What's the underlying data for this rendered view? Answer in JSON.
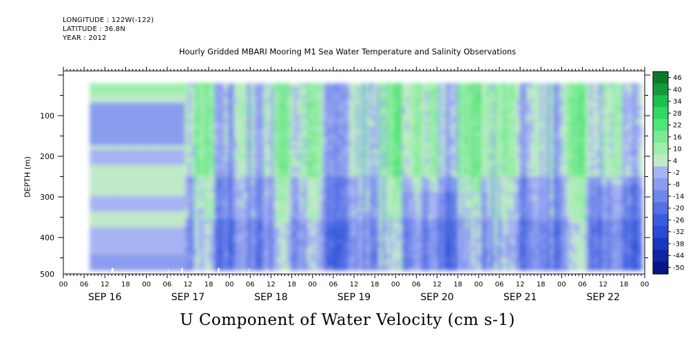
{
  "header": {
    "longitude": "LONGITUDE : 122W(-122)",
    "latitude": "LATITUDE : 36.8N",
    "year": "YEAR : 2012",
    "title": "Hourly Gridded MBARI Mooring M1 Sea Water Temperature and Salinity Observations"
  },
  "chart_data": {
    "type": "heatmap",
    "title": "Hourly Gridded MBARI Mooring M1 Sea Water Temperature and Salinity Observations",
    "xlabel": "U Component of Water Velocity (cm s-1)",
    "ylabel": "DEPTH (m)",
    "x_hour_ticks": [
      "00",
      "06",
      "12",
      "18",
      "00",
      "06",
      "12",
      "18",
      "00",
      "06",
      "12",
      "18",
      "00",
      "06",
      "12",
      "18",
      "00",
      "06",
      "12",
      "18",
      "00",
      "06",
      "12",
      "18",
      "00",
      "06",
      "12",
      "18",
      "00"
    ],
    "x_day_labels": [
      "SEP 16",
      "SEP 17",
      "SEP 18",
      "SEP 19",
      "SEP 20",
      "SEP 21",
      "SEP 22"
    ],
    "y_ticks": [
      100,
      200,
      300,
      400,
      500
    ],
    "ylim": [
      500,
      0
    ],
    "colorbar_levels": [
      46,
      40,
      34,
      28,
      22,
      16,
      10,
      4,
      -2,
      -8,
      -14,
      -20,
      -26,
      -32,
      -38,
      -44,
      -50
    ],
    "colors": {
      "strong_negative": "#0a1585",
      "negative": "#3a58dd",
      "weak_negative": "#9aa6f0",
      "weak_positive": "#a4f0b4",
      "positive": "#2ee06a",
      "strong_positive": "#0b7a2a"
    },
    "time_series_columns": [
      {
        "day": "SEP 16",
        "pattern": "green at surface, weak negative 60-180 m, weak positive below"
      },
      {
        "day": "SEP 17",
        "pattern": "transition from weak negative to mixed green and blue"
      },
      {
        "day": "SEP 18",
        "pattern": "alternating green and blue vertical bands"
      },
      {
        "day": "SEP 19",
        "pattern": "negative deep, positive bands upper"
      },
      {
        "day": "SEP 20",
        "pattern": "strong green bands upper, blue deep"
      },
      {
        "day": "SEP 21",
        "pattern": "mixed green upper, blue deep"
      },
      {
        "day": "SEP 22",
        "pattern": "green upper, blue lower"
      }
    ]
  }
}
